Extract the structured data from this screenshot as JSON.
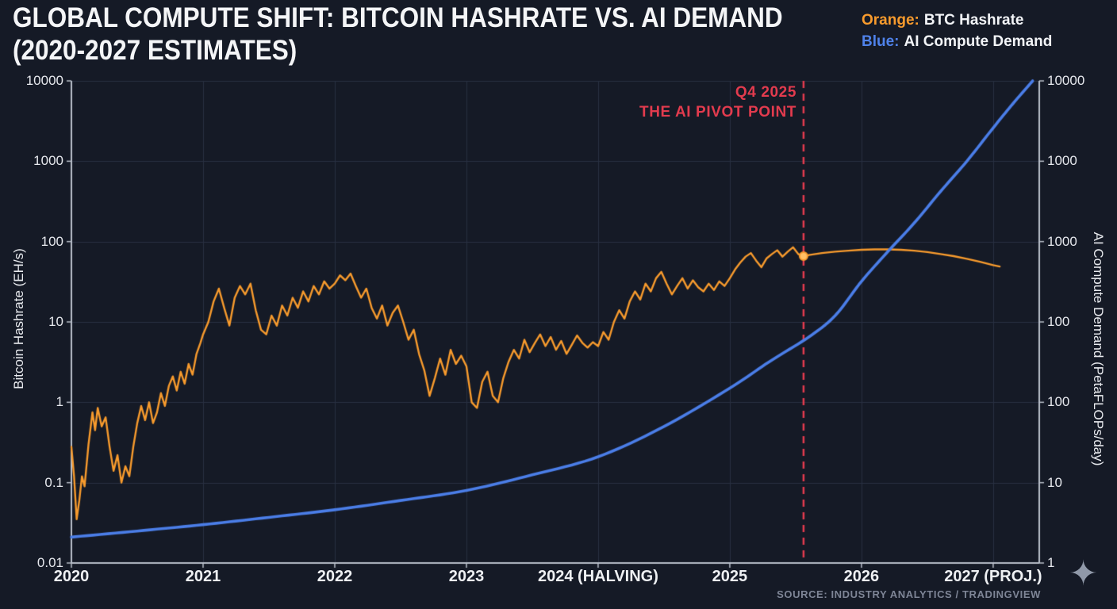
{
  "header": {
    "title_line1": "GLOBAL COMPUTE SHIFT: BITCOIN HASHRATE VS. AI DEMAND",
    "title_line2": "(2020-2027 ESTIMATES)",
    "legend": [
      {
        "prefix": "Orange:",
        "label": "BTC Hashrate",
        "color": "#f89b2d"
      },
      {
        "prefix": "Blue:",
        "label": "AI Compute Demand",
        "color": "#4f82ea"
      }
    ]
  },
  "footer": {
    "source": "SOURCE: INDUSTRY ANALYTICS / TRADINGVIEW",
    "sparkle_icon": "✦"
  },
  "chart_data": {
    "type": "line",
    "title": "GLOBAL COMPUTE SHIFT: BITCOIN HASHRATE VS. AI DEMAND (2020-2027 ESTIMATES)",
    "background_color": "#151a26",
    "grid_color": "#283042",
    "spine_color": "#b9bfca",
    "x_axis": {
      "range": [
        2020,
        2027.35
      ],
      "tick_positions": [
        2020,
        2021,
        2022,
        2023,
        2024,
        2025,
        2026,
        2027
      ],
      "tick_labels": [
        "2020",
        "2021",
        "2022",
        "2023",
        "2024 (HALVING)",
        "2025",
        "2026",
        "2027 (PROJ.)"
      ]
    },
    "left_axis": {
      "label": "Bitcoin Hashrate (EH/s)",
      "scale": "log",
      "range": [
        0.01,
        10000
      ],
      "tick_labels": [
        "10000",
        "1000",
        "100",
        "10",
        "1",
        "0.1",
        "0.01"
      ]
    },
    "right_axis": {
      "label": "AI Compute Demand (PetaFLOPs/day)",
      "tick_labels": [
        "10000",
        "1000",
        "1000",
        "100",
        "100",
        "10",
        "1"
      ]
    },
    "pivot": {
      "x": 2025.56,
      "label_line1": "Q4 2025",
      "label_line2": "THE AI PIVOT POINT",
      "color": "#e23b4e",
      "marker_value": 66
    },
    "series": [
      {
        "name": "BTC Hashrate",
        "color": "#f89b2d",
        "line_style": "jagged",
        "axis": "left",
        "points": [
          [
            2020.0,
            0.28
          ],
          [
            2020.02,
            0.12
          ],
          [
            2020.04,
            0.035
          ],
          [
            2020.06,
            0.06
          ],
          [
            2020.08,
            0.12
          ],
          [
            2020.1,
            0.09
          ],
          [
            2020.13,
            0.3
          ],
          [
            2020.16,
            0.75
          ],
          [
            2020.18,
            0.45
          ],
          [
            2020.2,
            0.85
          ],
          [
            2020.23,
            0.5
          ],
          [
            2020.26,
            0.65
          ],
          [
            2020.29,
            0.28
          ],
          [
            2020.32,
            0.14
          ],
          [
            2020.35,
            0.22
          ],
          [
            2020.38,
            0.1
          ],
          [
            2020.41,
            0.16
          ],
          [
            2020.44,
            0.12
          ],
          [
            2020.47,
            0.28
          ],
          [
            2020.5,
            0.55
          ],
          [
            2020.53,
            0.9
          ],
          [
            2020.56,
            0.6
          ],
          [
            2020.59,
            1.0
          ],
          [
            2020.62,
            0.55
          ],
          [
            2020.65,
            0.75
          ],
          [
            2020.68,
            1.3
          ],
          [
            2020.71,
            0.9
          ],
          [
            2020.74,
            1.6
          ],
          [
            2020.77,
            2.1
          ],
          [
            2020.8,
            1.4
          ],
          [
            2020.83,
            2.4
          ],
          [
            2020.86,
            1.7
          ],
          [
            2020.89,
            3.0
          ],
          [
            2020.92,
            2.2
          ],
          [
            2020.95,
            4.0
          ],
          [
            2020.98,
            5.5
          ],
          [
            2021.0,
            7.0
          ],
          [
            2021.04,
            10
          ],
          [
            2021.08,
            18
          ],
          [
            2021.12,
            26
          ],
          [
            2021.16,
            15
          ],
          [
            2021.2,
            9
          ],
          [
            2021.24,
            20
          ],
          [
            2021.28,
            28
          ],
          [
            2021.32,
            22
          ],
          [
            2021.36,
            30
          ],
          [
            2021.4,
            14
          ],
          [
            2021.44,
            8
          ],
          [
            2021.48,
            7
          ],
          [
            2021.52,
            12
          ],
          [
            2021.56,
            9
          ],
          [
            2021.6,
            16
          ],
          [
            2021.64,
            12
          ],
          [
            2021.68,
            20
          ],
          [
            2021.72,
            15
          ],
          [
            2021.76,
            24
          ],
          [
            2021.8,
            18
          ],
          [
            2021.84,
            28
          ],
          [
            2021.88,
            22
          ],
          [
            2021.92,
            32
          ],
          [
            2021.96,
            26
          ],
          [
            2022.0,
            30
          ],
          [
            2022.04,
            38
          ],
          [
            2022.08,
            33
          ],
          [
            2022.12,
            40
          ],
          [
            2022.16,
            28
          ],
          [
            2022.2,
            20
          ],
          [
            2022.24,
            26
          ],
          [
            2022.28,
            15
          ],
          [
            2022.32,
            11
          ],
          [
            2022.36,
            16
          ],
          [
            2022.4,
            9
          ],
          [
            2022.44,
            13
          ],
          [
            2022.48,
            16
          ],
          [
            2022.52,
            10
          ],
          [
            2022.56,
            6
          ],
          [
            2022.6,
            8
          ],
          [
            2022.64,
            4
          ],
          [
            2022.68,
            2.5
          ],
          [
            2022.72,
            1.2
          ],
          [
            2022.76,
            2.0
          ],
          [
            2022.8,
            3.5
          ],
          [
            2022.84,
            2.2
          ],
          [
            2022.88,
            4.5
          ],
          [
            2022.92,
            3.0
          ],
          [
            2022.96,
            3.8
          ],
          [
            2023.0,
            2.8
          ],
          [
            2023.04,
            1.0
          ],
          [
            2023.08,
            0.85
          ],
          [
            2023.12,
            1.8
          ],
          [
            2023.16,
            2.4
          ],
          [
            2023.2,
            1.2
          ],
          [
            2023.24,
            1.0
          ],
          [
            2023.28,
            2.0
          ],
          [
            2023.32,
            3.2
          ],
          [
            2023.36,
            4.5
          ],
          [
            2023.4,
            3.5
          ],
          [
            2023.44,
            6.0
          ],
          [
            2023.48,
            4.2
          ],
          [
            2023.52,
            5.5
          ],
          [
            2023.56,
            7.0
          ],
          [
            2023.6,
            5.0
          ],
          [
            2023.64,
            6.5
          ],
          [
            2023.68,
            4.5
          ],
          [
            2023.72,
            5.8
          ],
          [
            2023.76,
            4.0
          ],
          [
            2023.8,
            5.2
          ],
          [
            2023.84,
            6.8
          ],
          [
            2023.88,
            5.5
          ],
          [
            2023.92,
            4.8
          ],
          [
            2023.96,
            5.6
          ],
          [
            2024.0,
            5.0
          ],
          [
            2024.04,
            7.5
          ],
          [
            2024.08,
            6.0
          ],
          [
            2024.12,
            10
          ],
          [
            2024.16,
            14
          ],
          [
            2024.2,
            11
          ],
          [
            2024.24,
            18
          ],
          [
            2024.28,
            24
          ],
          [
            2024.32,
            19
          ],
          [
            2024.36,
            30
          ],
          [
            2024.4,
            24
          ],
          [
            2024.44,
            35
          ],
          [
            2024.48,
            42
          ],
          [
            2024.52,
            30
          ],
          [
            2024.56,
            22
          ],
          [
            2024.6,
            28
          ],
          [
            2024.64,
            35
          ],
          [
            2024.68,
            26
          ],
          [
            2024.72,
            33
          ],
          [
            2024.76,
            27
          ],
          [
            2024.8,
            24
          ],
          [
            2024.84,
            30
          ],
          [
            2024.88,
            25
          ],
          [
            2024.92,
            32
          ],
          [
            2024.96,
            28
          ],
          [
            2025.0,
            35
          ],
          [
            2025.04,
            45
          ],
          [
            2025.08,
            55
          ],
          [
            2025.12,
            65
          ],
          [
            2025.16,
            72
          ],
          [
            2025.2,
            58
          ],
          [
            2025.24,
            48
          ],
          [
            2025.28,
            62
          ],
          [
            2025.32,
            70
          ],
          [
            2025.36,
            78
          ],
          [
            2025.4,
            65
          ],
          [
            2025.44,
            75
          ],
          [
            2025.48,
            85
          ],
          [
            2025.52,
            70
          ],
          [
            2025.56,
            64
          ],
          [
            2025.6,
            68
          ],
          [
            2025.7,
            72
          ],
          [
            2025.8,
            75
          ],
          [
            2025.9,
            77
          ],
          [
            2026.0,
            79
          ],
          [
            2026.1,
            80
          ],
          [
            2026.2,
            80
          ],
          [
            2026.3,
            79
          ],
          [
            2026.4,
            77
          ],
          [
            2026.5,
            74
          ],
          [
            2026.6,
            70
          ],
          [
            2026.7,
            66
          ],
          [
            2026.8,
            61
          ],
          [
            2026.9,
            56
          ],
          [
            2027.0,
            51
          ],
          [
            2027.05,
            49
          ]
        ]
      },
      {
        "name": "AI Compute Demand",
        "color": "#4b7ee8",
        "line_style": "smooth",
        "axis": "right",
        "points": [
          [
            2020.0,
            0.021
          ],
          [
            2020.5,
            0.025
          ],
          [
            2021.0,
            0.03
          ],
          [
            2021.5,
            0.037
          ],
          [
            2022.0,
            0.046
          ],
          [
            2022.5,
            0.06
          ],
          [
            2023.0,
            0.08
          ],
          [
            2023.5,
            0.125
          ],
          [
            2024.0,
            0.21
          ],
          [
            2024.5,
            0.5
          ],
          [
            2025.0,
            1.5
          ],
          [
            2025.3,
            3.2
          ],
          [
            2025.6,
            6.5
          ],
          [
            2025.8,
            12
          ],
          [
            2026.0,
            32
          ],
          [
            2026.2,
            75
          ],
          [
            2026.4,
            170
          ],
          [
            2026.6,
            420
          ],
          [
            2026.8,
            1000
          ],
          [
            2027.0,
            2600
          ],
          [
            2027.15,
            5200
          ],
          [
            2027.3,
            10000
          ]
        ]
      }
    ]
  }
}
